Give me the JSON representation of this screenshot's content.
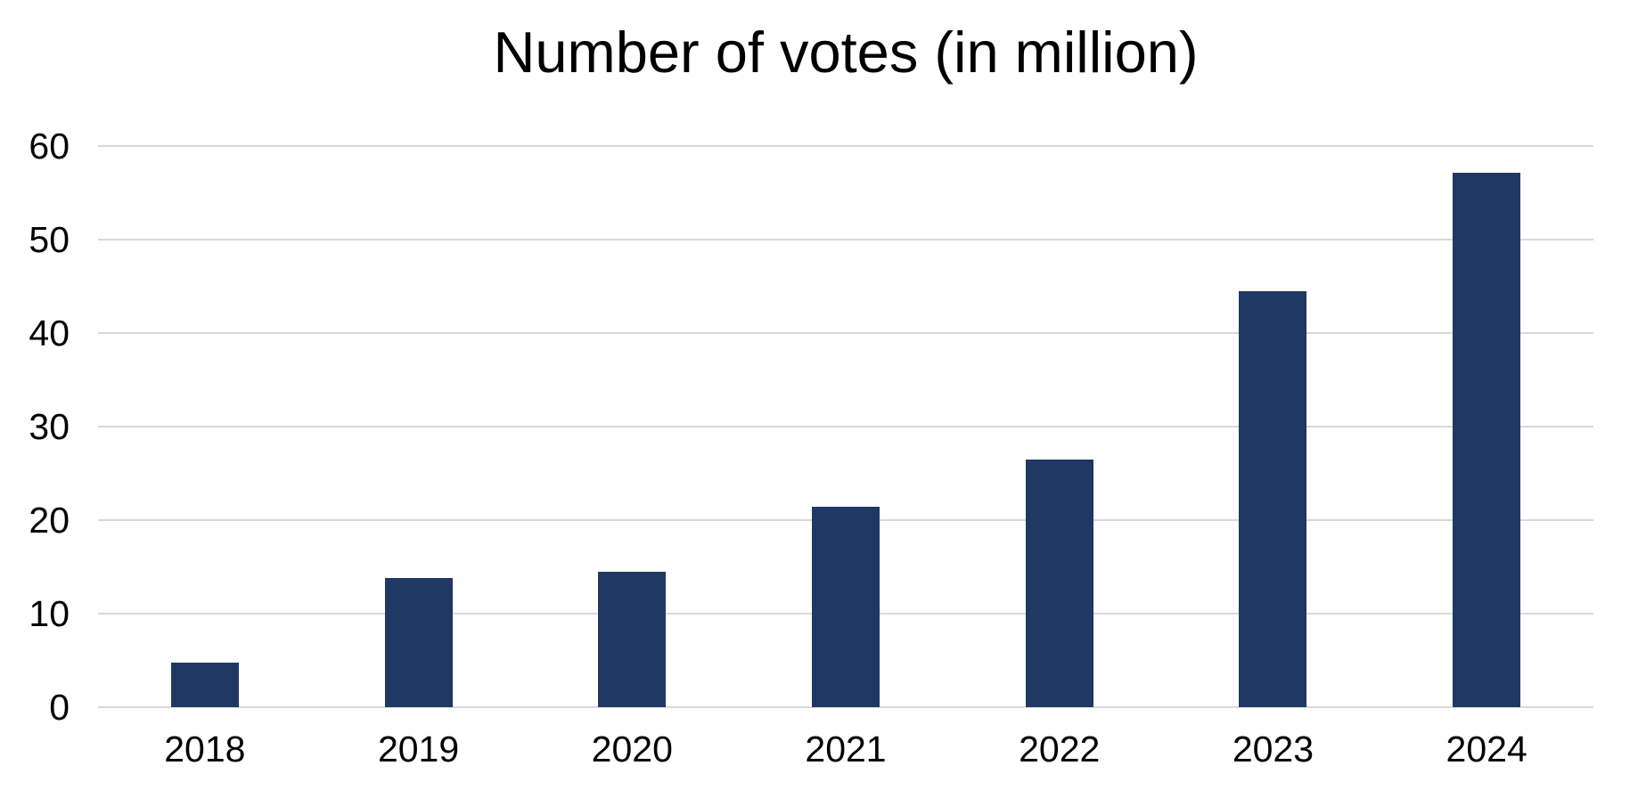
{
  "page": {
    "background_color": "#ffffff",
    "text_color": "#000000"
  },
  "chart_data": {
    "type": "bar",
    "title": "Number of votes (in million)",
    "categories": [
      "2018",
      "2019",
      "2020",
      "2021",
      "2022",
      "2023",
      "2024"
    ],
    "values": [
      4.8,
      13.8,
      14.5,
      21.4,
      26.5,
      44.5,
      57.1
    ],
    "xlabel": "",
    "ylabel": "",
    "ylim": [
      0,
      60
    ],
    "yticks": [
      0,
      10,
      20,
      30,
      40,
      50,
      60
    ],
    "grid": true,
    "legend": false,
    "bar_color": "#203864",
    "gridline_color": "#d9d9d9",
    "tick_label_color": "#000000",
    "title_color": "#000000"
  }
}
